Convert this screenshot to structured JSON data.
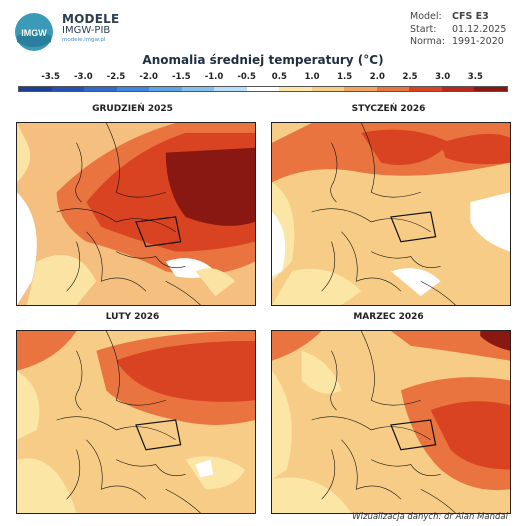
{
  "header": {
    "brand_line1": "MODELE",
    "brand_line2": "IMGW-PIB",
    "brand_line3": "modele.imgw.pl",
    "logo_text": "IMGW"
  },
  "meta": {
    "model_label": "Model:",
    "model_value": "CFS E3",
    "start_label": "Start:",
    "start_value": "01.12.2025",
    "norm_label": "Norma:",
    "norm_value": "1991-2020"
  },
  "title": "Anomalia średniej temperatury (°C)",
  "scale": {
    "labels": [
      "-3.5",
      "-3.0",
      "-2.5",
      "-2.0",
      "-1.5",
      "-1.0",
      "-0.5",
      "0.5",
      "1.0",
      "1.5",
      "2.0",
      "2.5",
      "3.0",
      "3.5"
    ],
    "colors": [
      "#1a3f94",
      "#2351b4",
      "#2f6ad1",
      "#3f86e2",
      "#5da4ea",
      "#82c0f1",
      "#b7defa",
      "#ffffff",
      "#fbe6a6",
      "#f7cc86",
      "#f2a563",
      "#ea7440",
      "#d94321",
      "#b9281b",
      "#8a1812"
    ]
  },
  "panels": [
    {
      "title": "GRUDZIEŃ 2025",
      "id": "dec"
    },
    {
      "title": "STYCZEŃ 2026",
      "id": "jan"
    },
    {
      "title": "LUTY 2026",
      "id": "feb"
    },
    {
      "title": "MARZEC 2026",
      "id": "mar"
    }
  ],
  "credit": "Wizualizacja danych: dr Alan Mandal"
}
